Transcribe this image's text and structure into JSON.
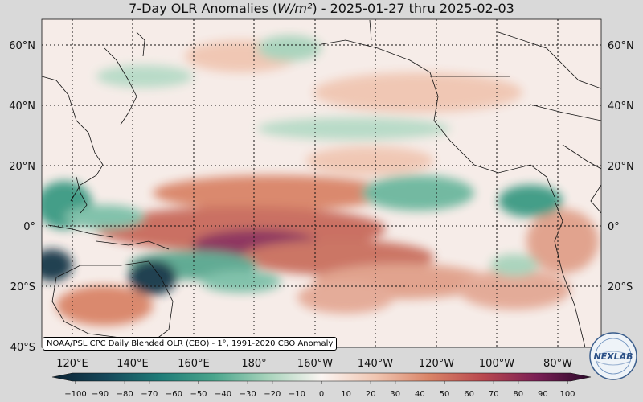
{
  "title": "7-Day OLR Anomalies (W/m²) - 2025-01-27 thru 2025-02-03",
  "credit": "NOAA/PSL CPC Daily Blended OLR (CBO) - 1°, 1991-2020 CBO Anomaly",
  "logo_text": "NEXLAB",
  "lat_labels": [
    "60°N",
    "40°N",
    "20°N",
    "0°",
    "20°S",
    "40°S"
  ],
  "lon_labels": [
    "120°E",
    "140°E",
    "160°E",
    "180°",
    "160°W",
    "140°W",
    "120°W",
    "100°W",
    "80°W"
  ],
  "colorbar": {
    "ticks": [
      "−100",
      "−90",
      "−80",
      "−70",
      "−60",
      "−50",
      "−40",
      "−30",
      "−20",
      "−10",
      "0",
      "10",
      "20",
      "30",
      "40",
      "50",
      "60",
      "70",
      "80",
      "90",
      "100"
    ],
    "low_color": "#0b2233",
    "mid_color": "#fbf5f2",
    "high_color": "#2b0a2b"
  },
  "colors": {
    "positive": "#c0604a",
    "positive_strong": "#8a2e5a",
    "negative": "#3a9a83",
    "negative_strong": "#14374a",
    "neutral": "#f6ece8"
  }
}
